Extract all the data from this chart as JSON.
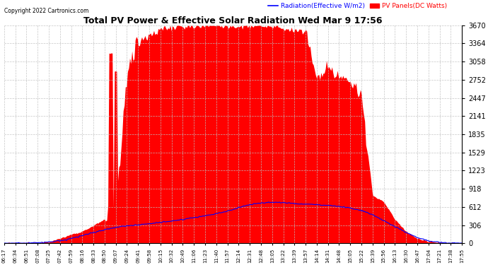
{
  "title": "Total PV Power & Effective Solar Radiation Wed Mar 9 17:56",
  "copyright": "Copyright 2022 Cartronics.com",
  "legend_radiation": "Radiation(Effective W/m2)",
  "legend_pv": "PV Panels(DC Watts)",
  "y_max": 3670.0,
  "y_min": 0.0,
  "y_ticks": [
    0.0,
    305.8,
    611.7,
    917.5,
    1223.3,
    1529.2,
    1835.0,
    2140.9,
    2446.7,
    2752.5,
    3058.4,
    3364.2,
    3670.0
  ],
  "pv_color": "#FF0000",
  "radiation_color": "#0000FF",
  "background_color": "#FFFFFF",
  "grid_color": "#C0C0C0",
  "title_color": "#000000",
  "copyright_color": "#000000",
  "x_labels": [
    "06:17",
    "06:34",
    "06:51",
    "07:08",
    "07:25",
    "07:42",
    "07:59",
    "08:16",
    "08:33",
    "08:50",
    "09:07",
    "09:24",
    "09:41",
    "09:58",
    "10:15",
    "10:32",
    "10:49",
    "11:06",
    "11:23",
    "11:40",
    "11:57",
    "12:14",
    "12:31",
    "12:48",
    "13:05",
    "13:22",
    "13:39",
    "13:57",
    "14:14",
    "14:31",
    "14:48",
    "15:05",
    "15:22",
    "15:39",
    "15:56",
    "16:13",
    "16:30",
    "16:47",
    "17:04",
    "17:21",
    "17:38",
    "17:55"
  ],
  "figwidth": 6.9,
  "figheight": 3.75,
  "dpi": 100
}
